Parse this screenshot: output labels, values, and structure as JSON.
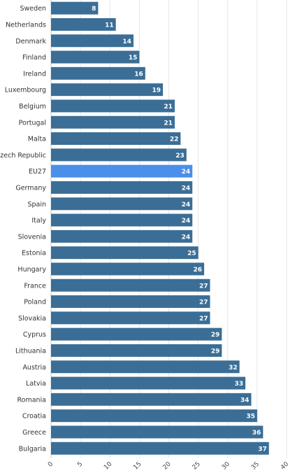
{
  "chart_data": {
    "type": "bar",
    "orientation": "horizontal",
    "categories": [
      "Sweden",
      "Netherlands",
      "Denmark",
      "Finland",
      "Ireland",
      "Luxembourg",
      "Belgium",
      "Portugal",
      "Malta",
      "Czech Republic",
      "EU27",
      "Germany",
      "Spain",
      "Italy",
      "Slovenia",
      "Estonia",
      "Hungary",
      "France",
      "Poland",
      "Slovakia",
      "Cyprus",
      "Lithuania",
      "Austria",
      "Latvia",
      "Romania",
      "Croatia",
      "Greece",
      "Bulgaria"
    ],
    "values": [
      8,
      11,
      14,
      15,
      16,
      19,
      21,
      21,
      22,
      23,
      24,
      24,
      24,
      24,
      24,
      25,
      26,
      27,
      27,
      27,
      29,
      29,
      32,
      33,
      34,
      35,
      36,
      37
    ],
    "highlight": "EU27",
    "x_ticks": [
      0,
      5,
      10,
      15,
      20,
      25,
      30,
      35,
      40
    ],
    "xlim": [
      0,
      40
    ],
    "grid": true,
    "colors": {
      "bar": "#3b6e96",
      "highlight": "#4a8fea"
    }
  }
}
